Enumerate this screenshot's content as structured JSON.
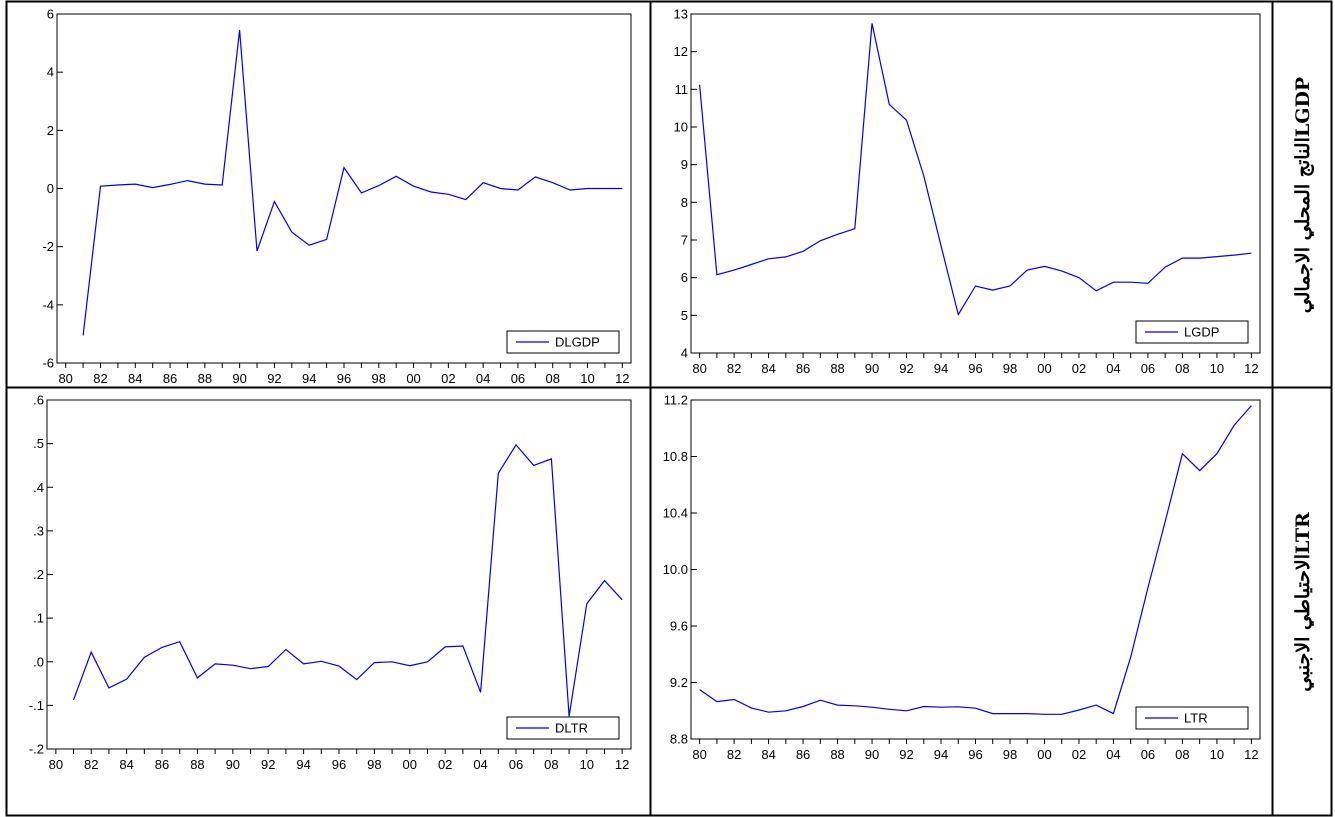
{
  "labels": {
    "row1": "LGDPالناتج المحلي الاجمالي",
    "row2": "LTRالاحتياطي الاجنبي"
  },
  "colors": {
    "line": "#0000ee",
    "axis": "#000000"
  },
  "chart_data": [
    {
      "type": "line",
      "id": "dlgdp",
      "legend": "DLGDP",
      "legend_position": "bottom-right",
      "grid": false,
      "x": [
        81,
        82,
        83,
        84,
        85,
        86,
        87,
        88,
        89,
        90,
        91,
        92,
        93,
        94,
        95,
        96,
        97,
        98,
        99,
        100,
        101,
        102,
        103,
        104,
        105,
        106,
        107,
        108,
        109,
        110,
        111,
        112
      ],
      "values": [
        -5.05,
        0.08,
        0.12,
        0.15,
        0.03,
        0.14,
        0.27,
        0.15,
        0.12,
        5.45,
        -2.15,
        -0.45,
        -1.5,
        -1.95,
        -1.75,
        0.72,
        -0.15,
        0.1,
        0.42,
        0.08,
        -0.12,
        -0.2,
        -0.38,
        0.2,
        0.0,
        -0.05,
        0.4,
        0.2,
        -0.05,
        0.0,
        0.0,
        0.0
      ],
      "xlim": [
        79.5,
        112.5
      ],
      "ylim": [
        -6,
        6
      ],
      "xticks": [
        "80",
        "82",
        "84",
        "86",
        "88",
        "90",
        "92",
        "94",
        "96",
        "98",
        "00",
        "02",
        "04",
        "06",
        "08",
        "10",
        "12"
      ],
      "yticks": [
        "-6",
        "-4",
        "-2",
        "0",
        "2",
        "4",
        "6"
      ]
    },
    {
      "type": "line",
      "id": "lgdp",
      "legend": "LGDP",
      "legend_position": "bottom-right",
      "grid": false,
      "x": [
        80,
        81,
        82,
        83,
        84,
        85,
        86,
        87,
        88,
        89,
        90,
        91,
        92,
        93,
        94,
        95,
        96,
        97,
        98,
        99,
        100,
        101,
        102,
        103,
        104,
        105,
        106,
        107,
        108,
        109,
        110,
        111,
        112
      ],
      "values": [
        11.12,
        6.08,
        6.2,
        6.35,
        6.5,
        6.55,
        6.7,
        6.98,
        7.15,
        7.3,
        12.75,
        10.6,
        10.18,
        8.7,
        6.85,
        5.02,
        5.78,
        5.67,
        5.78,
        6.2,
        6.3,
        6.18,
        6.0,
        5.65,
        5.88,
        5.88,
        5.85,
        6.28,
        6.52,
        6.52,
        6.56,
        6.6,
        6.65
      ],
      "xlim": [
        79.5,
        112.5
      ],
      "ylim": [
        4,
        13
      ],
      "xticks": [
        "80",
        "82",
        "84",
        "86",
        "88",
        "90",
        "92",
        "94",
        "96",
        "98",
        "00",
        "02",
        "04",
        "06",
        "08",
        "10",
        "12"
      ],
      "yticks": [
        "4",
        "5",
        "6",
        "7",
        "8",
        "9",
        "10",
        "11",
        "12",
        "13"
      ]
    },
    {
      "type": "line",
      "id": "dltr",
      "legend": "DLTR",
      "legend_position": "bottom-right",
      "grid": false,
      "x": [
        81,
        82,
        83,
        84,
        85,
        86,
        87,
        88,
        89,
        90,
        91,
        92,
        93,
        94,
        95,
        96,
        97,
        98,
        99,
        100,
        101,
        102,
        103,
        104,
        105,
        106,
        107,
        108,
        109,
        110,
        111,
        112
      ],
      "values": [
        -0.088,
        0.022,
        -0.06,
        -0.04,
        0.01,
        0.033,
        0.046,
        -0.037,
        -0.005,
        -0.008,
        -0.016,
        -0.011,
        0.028,
        -0.005,
        0.001,
        -0.01,
        -0.041,
        -0.002,
        0.0,
        -0.009,
        0.0,
        0.034,
        0.036,
        -0.07,
        0.432,
        0.497,
        0.45,
        0.465,
        -0.125,
        0.133,
        0.186,
        0.142
      ],
      "xlim": [
        79.5,
        112.5
      ],
      "ylim": [
        -0.2,
        0.6
      ],
      "xticks": [
        "80",
        "82",
        "84",
        "86",
        "88",
        "90",
        "92",
        "94",
        "96",
        "98",
        "00",
        "02",
        "04",
        "06",
        "08",
        "10",
        "12"
      ],
      "yticks": [
        "-.2",
        "-.1",
        ".0",
        ".1",
        ".2",
        ".3",
        ".4",
        ".5",
        ".6"
      ]
    },
    {
      "type": "line",
      "id": "ltr",
      "legend": "LTR",
      "legend_position": "bottom-right",
      "grid": false,
      "x": [
        80,
        81,
        82,
        83,
        84,
        85,
        86,
        87,
        88,
        89,
        90,
        91,
        92,
        93,
        94,
        95,
        96,
        97,
        98,
        99,
        100,
        101,
        102,
        103,
        104,
        105,
        106,
        107,
        108,
        109,
        110,
        111,
        112
      ],
      "values": [
        9.15,
        9.065,
        9.08,
        9.02,
        8.99,
        9.0,
        9.03,
        9.075,
        9.04,
        9.035,
        9.025,
        9.01,
        9.0,
        9.03,
        9.025,
        9.028,
        9.018,
        8.98,
        8.98,
        8.98,
        8.975,
        8.975,
        9.005,
        9.04,
        8.98,
        9.38,
        9.87,
        10.34,
        10.82,
        10.7,
        10.82,
        11.02,
        11.16
      ],
      "xlim": [
        79.5,
        112.5
      ],
      "ylim": [
        8.8,
        11.2
      ],
      "xticks": [
        "80",
        "82",
        "84",
        "86",
        "88",
        "90",
        "92",
        "94",
        "96",
        "98",
        "00",
        "02",
        "04",
        "06",
        "08",
        "10",
        "12"
      ],
      "yticks": [
        "8.8",
        "9.2",
        "9.6",
        "10.0",
        "10.4",
        "10.8",
        "11.2"
      ]
    }
  ]
}
